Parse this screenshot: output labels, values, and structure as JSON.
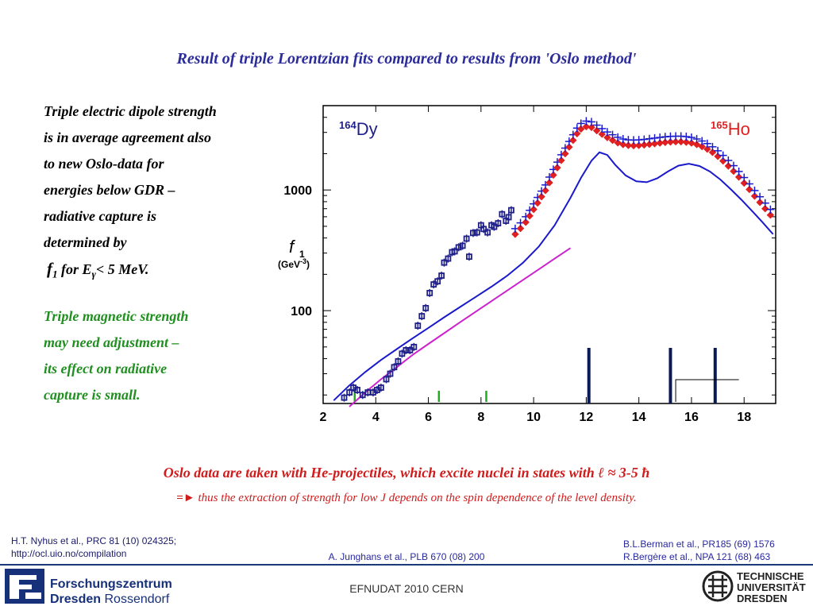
{
  "title": "Result of triple Lorentzian fits compared to results from 'Oslo method'",
  "left_text": {
    "para1": [
      "Triple electric dipole strength",
      "is in average agreement also",
      "to new Oslo-data for",
      "energies below GDR  –",
      "radiative capture is",
      "determined by"
    ],
    "para1_last": {
      "f": "f",
      "sub": "1",
      "rest": "  for E",
      "gamma": "γ",
      "tail": "< 5 MeV."
    },
    "para2": [
      "Triple magnetic strength",
      "may need adjustment –",
      "its effect on radiative",
      "capture is small."
    ]
  },
  "oslo_line1": "Oslo data are taken with He-projectiles, which excite nuclei in states with ℓ ≈ 3-5 ħ",
  "oslo_line2_arrow": "=►",
  "oslo_line2": " thus the extraction of strength for low J depends on the spin dependence of the level density.",
  "refs": {
    "left1": "H.T. Nyhus et al., PRC 81 (10) 024325;",
    "left2": "http://ocl.uio.no/compilation",
    "center": "A. Junghans et al., PLB  670 (08) 200",
    "right1": "B.L.Berman et al., PR185 (69) 1576",
    "right2": "R.Bergère et al., NPA 121 (68) 463"
  },
  "footer": "EFNUDAT 2010 CERN",
  "logos": {
    "fzd_line1": "Forschungszentrum",
    "fzd_line2a": "Dresden",
    "fzd_line2b": "Rossendorf",
    "tud1": "TECHNISCHE",
    "tud2": "UNIVERSITÄT",
    "tud3": "DRESDEN"
  },
  "colors": {
    "title": "#2b2b9a",
    "dy": "#1f1f8a",
    "ho": "#e02020",
    "fit": "#1a1acc",
    "oslo_fit": "#cc22cc",
    "green_marks": "#22aa22",
    "bars": "#0a1a55"
  },
  "chart_data": {
    "type": "scatter",
    "x_ticks": [
      2,
      4,
      6,
      8,
      10,
      12,
      14,
      16,
      18
    ],
    "xlim": [
      2,
      19.2
    ],
    "y_scale": "log",
    "ylim": [
      17,
      5000
    ],
    "y_ticks": [
      100,
      1000
    ],
    "y_tick_labels": [
      "100",
      "1000"
    ],
    "ylabel": "f",
    "ylabel_sub": "1",
    "ylabel_unit": "(GeV",
    "ylabel_unit_sup": "-3",
    "ylabel_unit_end": ")",
    "labels": {
      "dy_sup": "164",
      "dy": "Dy",
      "ho_sup": "165",
      "ho": "Ho"
    },
    "series": [
      {
        "name": "164Dy Oslo",
        "marker": "square",
        "points": [
          [
            2.8,
            19
          ],
          [
            3.0,
            21
          ],
          [
            3.15,
            23
          ],
          [
            3.3,
            22
          ],
          [
            3.5,
            20
          ],
          [
            3.7,
            21
          ],
          [
            3.9,
            21
          ],
          [
            4.05,
            22
          ],
          [
            4.2,
            23
          ],
          [
            4.4,
            27
          ],
          [
            4.55,
            30
          ],
          [
            4.7,
            34
          ],
          [
            4.85,
            38
          ],
          [
            5.0,
            44
          ],
          [
            5.15,
            47
          ],
          [
            5.3,
            47
          ],
          [
            5.45,
            50
          ],
          [
            5.6,
            75
          ],
          [
            5.75,
            90
          ],
          [
            5.9,
            105
          ],
          [
            6.05,
            140
          ],
          [
            6.2,
            165
          ],
          [
            6.35,
            175
          ],
          [
            6.5,
            195
          ],
          [
            6.6,
            250
          ],
          [
            6.75,
            270
          ],
          [
            6.9,
            305
          ],
          [
            7.0,
            310
          ],
          [
            7.15,
            335
          ],
          [
            7.3,
            345
          ],
          [
            7.45,
            395
          ],
          [
            7.55,
            280
          ],
          [
            7.7,
            440
          ],
          [
            7.85,
            445
          ],
          [
            8.0,
            510
          ],
          [
            8.1,
            475
          ],
          [
            8.25,
            445
          ],
          [
            8.4,
            510
          ],
          [
            8.5,
            495
          ],
          [
            8.65,
            530
          ],
          [
            8.8,
            630
          ],
          [
            8.95,
            555
          ],
          [
            9.05,
            595
          ],
          [
            9.15,
            680
          ]
        ]
      },
      {
        "name": "165Ho",
        "marker": "diamond",
        "points": [
          [
            9.3,
            430
          ],
          [
            9.5,
            480
          ],
          [
            9.7,
            540
          ],
          [
            9.85,
            610
          ],
          [
            10.0,
            690
          ],
          [
            10.15,
            780
          ],
          [
            10.3,
            880
          ],
          [
            10.45,
            990
          ],
          [
            10.6,
            1150
          ],
          [
            10.75,
            1330
          ],
          [
            10.9,
            1530
          ],
          [
            11.05,
            1760
          ],
          [
            11.2,
            2000
          ],
          [
            11.35,
            2270
          ],
          [
            11.5,
            2580
          ],
          [
            11.65,
            2930
          ],
          [
            11.8,
            3200
          ],
          [
            12.0,
            3350
          ],
          [
            12.2,
            3300
          ],
          [
            12.4,
            3100
          ],
          [
            12.6,
            2900
          ],
          [
            12.8,
            2720
          ],
          [
            13.0,
            2580
          ],
          [
            13.2,
            2460
          ],
          [
            13.4,
            2380
          ],
          [
            13.6,
            2340
          ],
          [
            13.8,
            2330
          ],
          [
            14.0,
            2340
          ],
          [
            14.2,
            2360
          ],
          [
            14.4,
            2390
          ],
          [
            14.6,
            2420
          ],
          [
            14.8,
            2450
          ],
          [
            15.0,
            2480
          ],
          [
            15.2,
            2500
          ],
          [
            15.4,
            2510
          ],
          [
            15.6,
            2510
          ],
          [
            15.8,
            2490
          ],
          [
            16.0,
            2450
          ],
          [
            16.2,
            2380
          ],
          [
            16.4,
            2290
          ],
          [
            16.6,
            2180
          ],
          [
            16.8,
            2050
          ],
          [
            17.0,
            1900
          ],
          [
            17.2,
            1740
          ],
          [
            17.4,
            1580
          ],
          [
            17.6,
            1430
          ],
          [
            17.8,
            1280
          ],
          [
            18.0,
            1140
          ],
          [
            18.2,
            1010
          ],
          [
            18.4,
            890
          ],
          [
            18.6,
            790
          ],
          [
            18.8,
            700
          ],
          [
            19.0,
            620
          ]
        ]
      },
      {
        "name": "fit",
        "type": "line",
        "points": [
          [
            2.4,
            18
          ],
          [
            3.0,
            24
          ],
          [
            3.6,
            31
          ],
          [
            4.2,
            39
          ],
          [
            4.8,
            48
          ],
          [
            5.4,
            59
          ],
          [
            6.0,
            72
          ],
          [
            6.6,
            88
          ],
          [
            7.2,
            107
          ],
          [
            7.8,
            130
          ],
          [
            8.4,
            158
          ],
          [
            9.0,
            195
          ],
          [
            9.6,
            250
          ],
          [
            10.2,
            340
          ],
          [
            10.8,
            510
          ],
          [
            11.4,
            860
          ],
          [
            11.8,
            1260
          ],
          [
            12.2,
            1750
          ],
          [
            12.5,
            2050
          ],
          [
            12.8,
            1950
          ],
          [
            13.1,
            1620
          ],
          [
            13.5,
            1320
          ],
          [
            13.9,
            1180
          ],
          [
            14.3,
            1160
          ],
          [
            14.7,
            1250
          ],
          [
            15.1,
            1420
          ],
          [
            15.5,
            1590
          ],
          [
            15.9,
            1650
          ],
          [
            16.3,
            1580
          ],
          [
            16.7,
            1420
          ],
          [
            17.1,
            1220
          ],
          [
            17.5,
            1010
          ],
          [
            17.9,
            830
          ],
          [
            18.3,
            670
          ],
          [
            18.7,
            540
          ],
          [
            19.1,
            430
          ]
        ]
      },
      {
        "name": "oslo fit",
        "type": "line",
        "points": [
          [
            3.0,
            16
          ],
          [
            3.6,
            21
          ],
          [
            4.2,
            27
          ],
          [
            4.8,
            34
          ],
          [
            5.4,
            43
          ],
          [
            6.0,
            53
          ],
          [
            6.6,
            65
          ],
          [
            7.2,
            80
          ],
          [
            7.8,
            98
          ],
          [
            8.4,
            120
          ],
          [
            9.0,
            147
          ],
          [
            9.6,
            180
          ],
          [
            10.2,
            220
          ],
          [
            10.8,
            270
          ],
          [
            11.4,
            330
          ]
        ]
      }
    ]
  }
}
